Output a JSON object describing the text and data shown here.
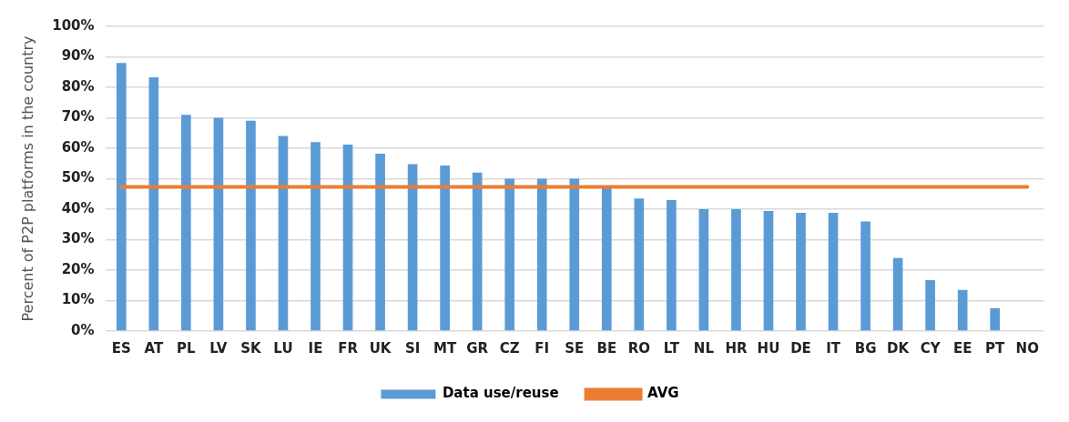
{
  "chart_data": {
    "type": "bar",
    "ylabel": "Percent of P2P platforms in the country",
    "categories": [
      "ES",
      "AT",
      "PL",
      "LV",
      "SK",
      "LU",
      "IE",
      "FR",
      "UK",
      "SI",
      "MT",
      "GR",
      "CZ",
      "FI",
      "SE",
      "BE",
      "RO",
      "LT",
      "NL",
      "HR",
      "HU",
      "DE",
      "IT",
      "BG",
      "DK",
      "CY",
      "EE",
      "PT",
      "NO"
    ],
    "series": [
      {
        "name": "Data use/reuse",
        "color": "#5b9bd5",
        "values": [
          88,
          83.3,
          71,
          70,
          69,
          64,
          62,
          61.2,
          58.2,
          54.8,
          54.3,
          52,
          50,
          50,
          50,
          47,
          43.5,
          43,
          40,
          40,
          39.4,
          38.8,
          38.8,
          36,
          24,
          16.7,
          13.5,
          7.5,
          0
        ]
      },
      {
        "name": "AVG",
        "type": "line",
        "color": "#ed7d31",
        "values": [
          47.3,
          47.3,
          47.3,
          47.3,
          47.3,
          47.3,
          47.3,
          47.3,
          47.3,
          47.3,
          47.3,
          47.3,
          47.3,
          47.3,
          47.3,
          47.3,
          47.3,
          47.3,
          47.3,
          47.3,
          47.3,
          47.3,
          47.3,
          47.3,
          47.3,
          47.3,
          47.3,
          47.3,
          47.3
        ]
      }
    ],
    "ylim": [
      0,
      100
    ],
    "yticks": [
      {
        "value": 0,
        "label": "0%"
      },
      {
        "value": 10,
        "label": "10%"
      },
      {
        "value": 20,
        "label": "20%"
      },
      {
        "value": 30,
        "label": "30%"
      },
      {
        "value": 40,
        "label": "40%"
      },
      {
        "value": 50,
        "label": "50%"
      },
      {
        "value": 60,
        "label": "60%"
      },
      {
        "value": 70,
        "label": "70%"
      },
      {
        "value": 80,
        "label": "80%"
      },
      {
        "value": 90,
        "label": "90%"
      },
      {
        "value": 100,
        "label": "100%"
      }
    ],
    "grid": "y",
    "legend": "bottom",
    "marker": "none"
  }
}
